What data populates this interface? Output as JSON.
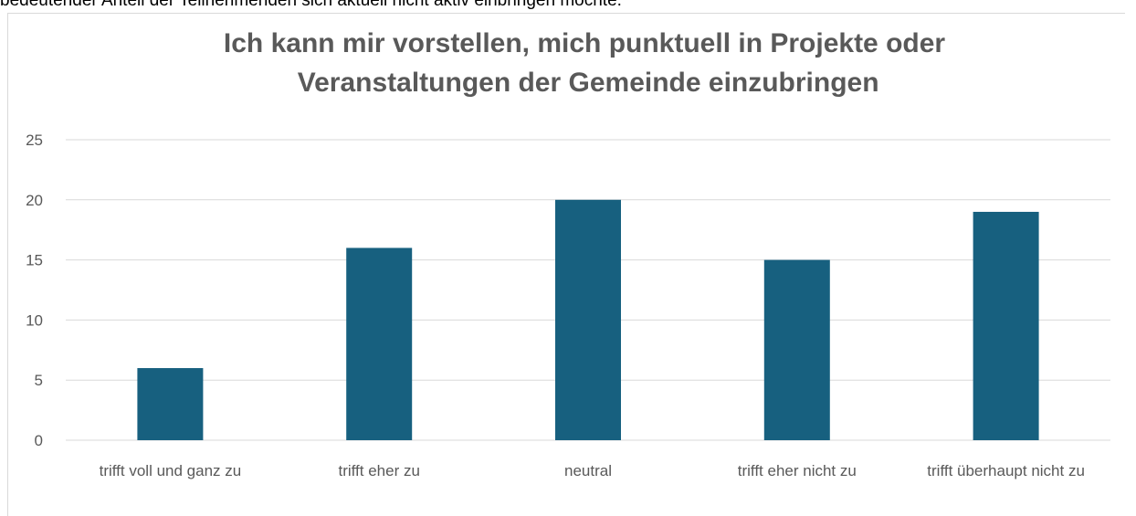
{
  "intro_text": "bedeutender Anteil der Teilnehmenden sich aktuell nicht aktiv einbringen möchte.",
  "chart_data": {
    "type": "bar",
    "title": "Ich kann mir vorstellen, mich punktuell in Projekte oder Veranstaltungen der Gemeinde einzubringen",
    "categories": [
      "trifft voll und ganz zu",
      "trifft eher zu",
      "neutral",
      "trifft eher nicht zu",
      "trifft überhaupt nicht zu"
    ],
    "values": [
      6,
      16,
      20,
      15,
      19
    ],
    "color": "#17607f",
    "ylim": [
      0,
      25
    ],
    "yticks": [
      0,
      5,
      10,
      15,
      20,
      25
    ],
    "grid": true
  }
}
